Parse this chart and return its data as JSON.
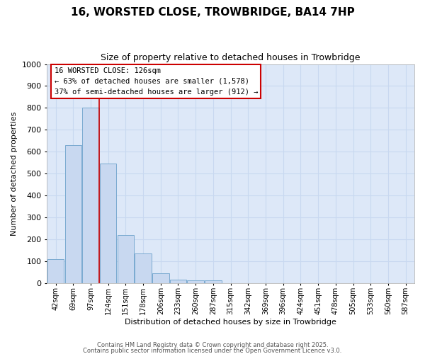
{
  "title": "16, WORSTED CLOSE, TROWBRIDGE, BA14 7HP",
  "subtitle": "Size of property relative to detached houses in Trowbridge",
  "xlabel": "Distribution of detached houses by size in Trowbridge",
  "ylabel": "Number of detached properties",
  "bar_labels": [
    "42sqm",
    "69sqm",
    "97sqm",
    "124sqm",
    "151sqm",
    "178sqm",
    "206sqm",
    "233sqm",
    "260sqm",
    "287sqm",
    "315sqm",
    "342sqm",
    "369sqm",
    "396sqm",
    "424sqm",
    "451sqm",
    "478sqm",
    "505sqm",
    "533sqm",
    "560sqm",
    "587sqm"
  ],
  "bar_values": [
    110,
    630,
    800,
    545,
    220,
    135,
    45,
    15,
    10,
    10,
    0,
    0,
    0,
    0,
    0,
    0,
    0,
    0,
    0,
    0,
    0
  ],
  "bar_color": "#c8d8f0",
  "bar_edgecolor": "#7aaad0",
  "bar_linewidth": 0.7,
  "vline_x": 2.5,
  "vline_color": "#cc0000",
  "ylim": [
    0,
    1000
  ],
  "yticks": [
    0,
    100,
    200,
    300,
    400,
    500,
    600,
    700,
    800,
    900,
    1000
  ],
  "grid_color": "#c8d8f0",
  "plot_bg_color": "#dde8f8",
  "fig_bg_color": "#ffffff",
  "annotation_text": "16 WORSTED CLOSE: 126sqm\n← 63% of detached houses are smaller (1,578)\n37% of semi-detached houses are larger (912) →",
  "footer_line1": "Contains HM Land Registry data © Crown copyright and database right 2025.",
  "footer_line2": "Contains public sector information licensed under the Open Government Licence v3.0."
}
